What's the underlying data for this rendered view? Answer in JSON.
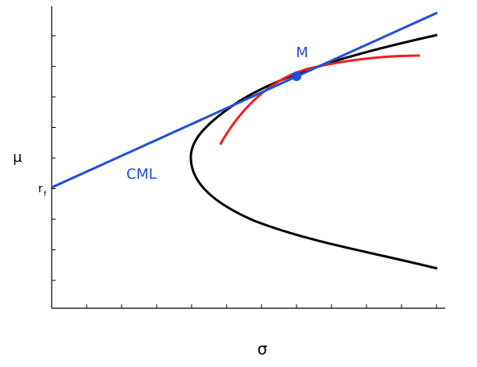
{
  "diagram": {
    "type": "capital-market-line",
    "xlabel": "σ",
    "ylabel": "μ",
    "rf_label": "r",
    "rf_subscript": "f",
    "cml_label": "CML",
    "market_label": "M",
    "colors": {
      "axis": "#000000",
      "cml": "#1f4fe0",
      "frontier": "#000000",
      "risky_frontier": "#e8231e",
      "market_point": "#1f4fe0"
    },
    "components": [
      "axes",
      "capital-market-line",
      "efficient-frontier",
      "risky-asset-frontier",
      "market-portfolio"
    ]
  }
}
